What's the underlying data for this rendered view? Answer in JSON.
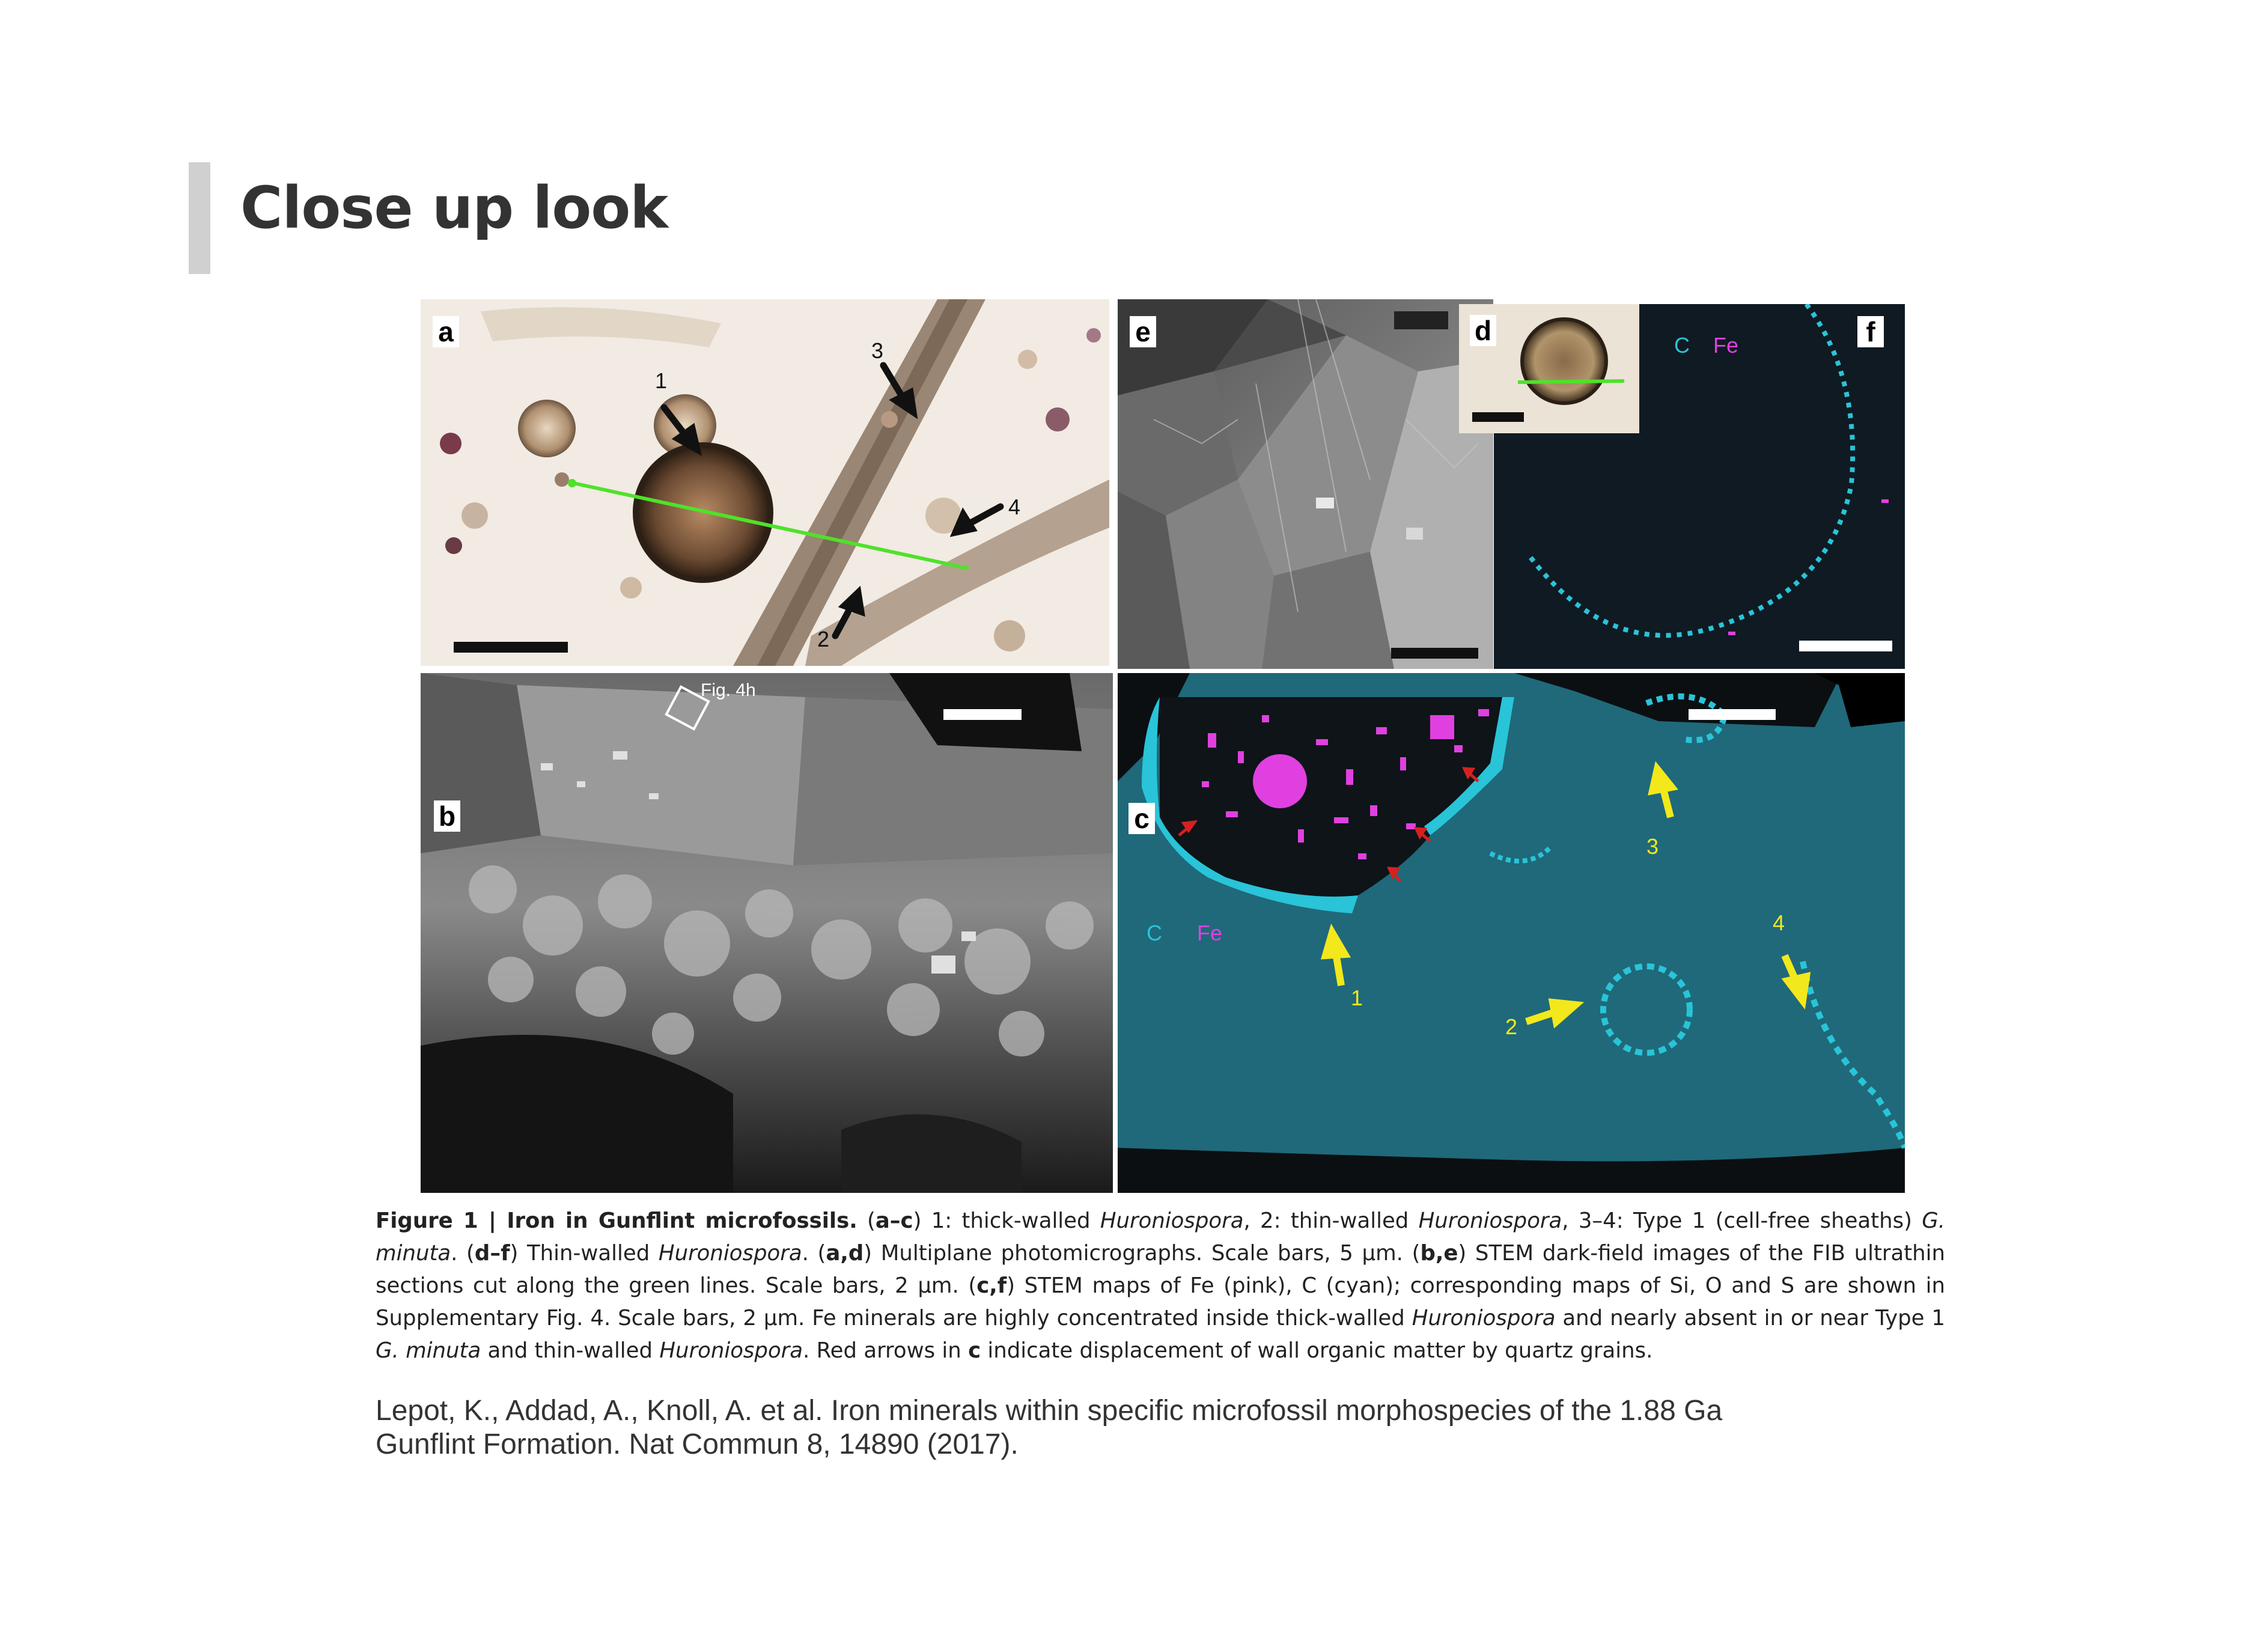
{
  "slide": {
    "title": "Close up look"
  },
  "figure": {
    "panels": {
      "a": {
        "label": "a",
        "arrows": [
          "1",
          "2",
          "3",
          "4"
        ]
      },
      "b": {
        "label": "b",
        "box_label": "Fig. 4h"
      },
      "c": {
        "label": "c",
        "legend_c": "C",
        "legend_fe": "Fe",
        "arrows": [
          "1",
          "2",
          "3",
          "4"
        ]
      },
      "d": {
        "label": "d"
      },
      "e": {
        "label": "e"
      },
      "f": {
        "label": "f",
        "legend_c": "C",
        "legend_fe": "Fe"
      }
    },
    "colors": {
      "cyan": "#29c4d8",
      "magenta": "#e040e0",
      "yellow": "#f2e81b",
      "green_line": "#4fe22a",
      "red_arrow": "#d62020"
    }
  },
  "caption": {
    "lead": "Figure 1 | Iron in Gunflint microfossils.",
    "p1_open": "(",
    "p1_ac": "a–c",
    "p1_close": ")",
    "s1": " 1: thick-walled ",
    "huronio": "Huroniospora",
    "s2": ", 2: thin-walled ",
    "s3": ", 3–4: Type 1 (cell-free sheaths) ",
    "gminuta": "G. minuta",
    "s4": ". (",
    "df": "d–f",
    "s5": ") Thin-walled ",
    "s6": ". (",
    "ad": "a,d",
    "s7": ") Multiplane photomicrographs. Scale bars, 5 μm. (",
    "be": "b,e",
    "s8": ") STEM dark-field images of the FIB ultrathin sections cut along the green lines. Scale bars, 2 μm. (",
    "cf": "c,f",
    "s9": ") STEM maps of Fe (pink), C (cyan); corresponding maps of Si, O and S are shown in Supplementary Fig. 4. Scale bars, 2 μm. Fe minerals are highly concentrated inside thick-walled ",
    "s10": " and nearly absent in or near Type 1 ",
    "s11": " and thin-walled ",
    "s12": ". Red arrows in ",
    "c_bold": "c",
    "s13": " indicate displacement of wall organic matter by quartz grains."
  },
  "citation": "Lepot, K., Addad, A., Knoll, A. et al. Iron minerals within specific microfossil morphospecies of the 1.88 Ga Gunflint Formation. Nat Commun 8, 14890 (2017)."
}
